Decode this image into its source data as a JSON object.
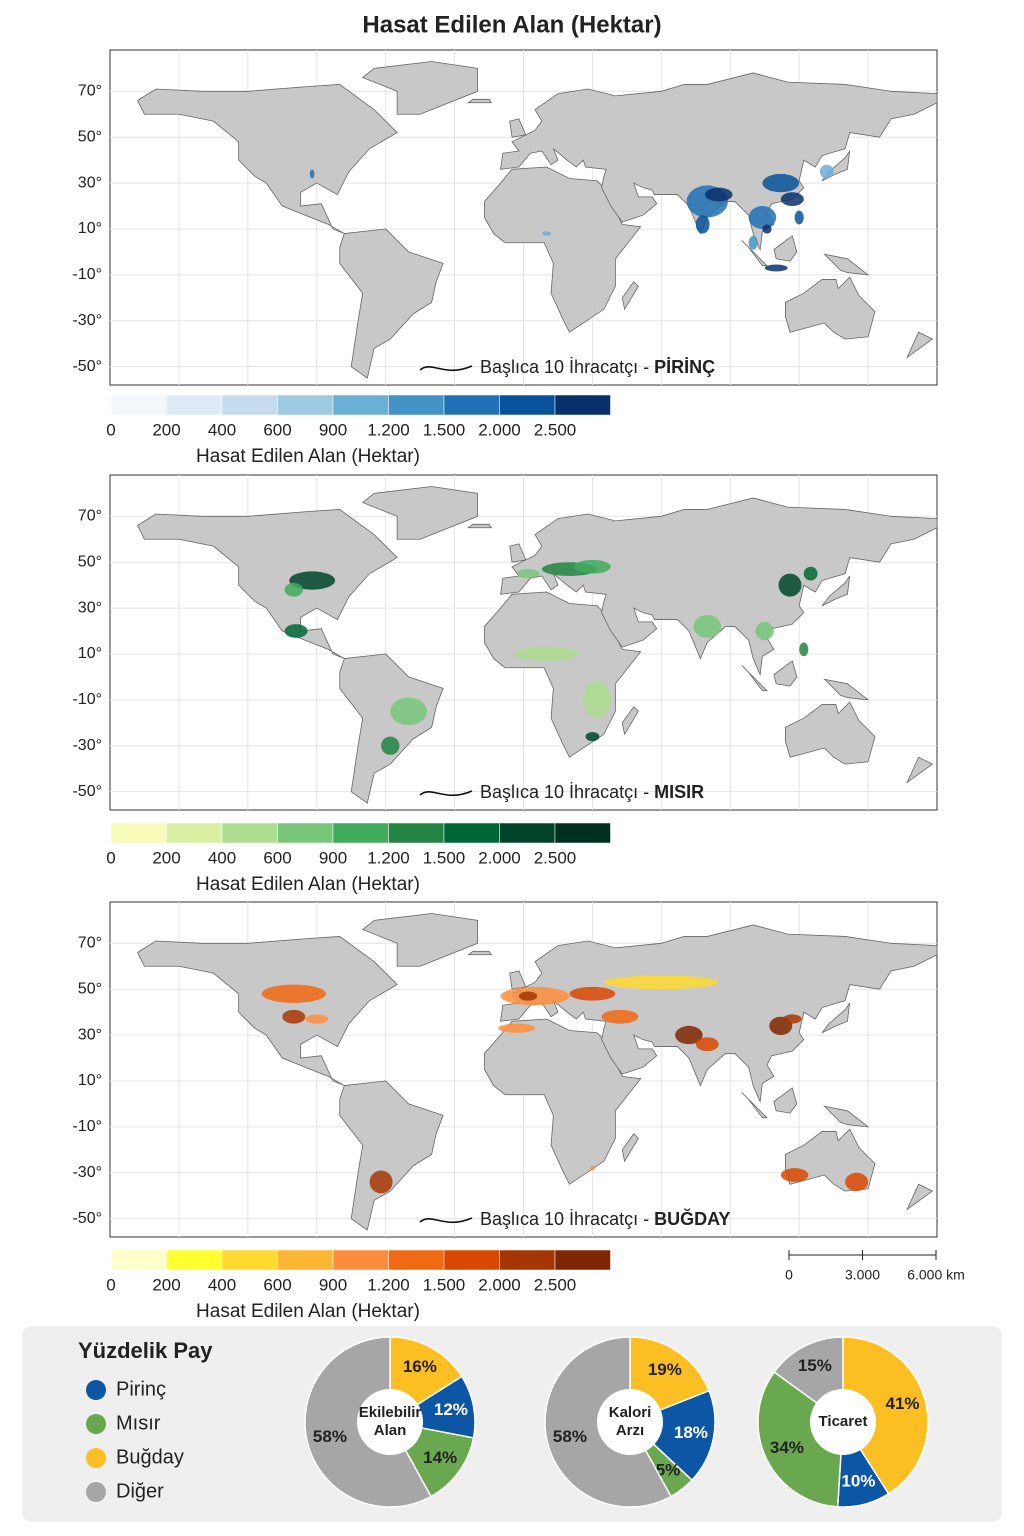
{
  "title": "Hasat Edilen Alan (Hektar)",
  "maps": {
    "xlim": [
      -180,
      180
    ],
    "ylim": [
      -58,
      88
    ],
    "yticks": [
      {
        "value": 70,
        "label": "70°"
      },
      {
        "value": 50,
        "label": "50°"
      },
      {
        "value": 30,
        "label": "30°"
      },
      {
        "value": 10,
        "label": "10°"
      },
      {
        "value": -10,
        "label": "-10°"
      },
      {
        "value": -30,
        "label": "-30°"
      },
      {
        "value": -50,
        "label": "-50°"
      }
    ],
    "panels": [
      {
        "legend_text": "Başlıca 10 İhracatçı -",
        "crop": "PİRİNÇ",
        "colorbar_title": "Hasat Edilen Alan (Hektar)",
        "colorbar_ticks": [
          0,
          200,
          400,
          600,
          900,
          {
            "value": 1200,
            "label": "1.200"
          },
          {
            "value": 1500,
            "label": "1.500"
          },
          {
            "value": 2000,
            "label": "2.000"
          },
          {
            "value": 2500,
            "label": "2.500"
          }
        ],
        "colors": [
          "#f2f7fc",
          "#deebf7",
          "#c6dbef",
          "#9ecae1",
          "#6baed6",
          "#4292c6",
          "#2171b5",
          "#08519c",
          "#08306b"
        ]
      },
      {
        "legend_text": "Başlıca 10 İhracatçı -",
        "crop": "MISIR",
        "colorbar_title": "Hasat Edilen Alan (Hektar)",
        "colorbar_ticks": [
          0,
          200,
          400,
          600,
          900,
          {
            "value": 1200,
            "label": "1.200"
          },
          {
            "value": 1500,
            "label": "1.500"
          },
          {
            "value": 2000,
            "label": "2.000"
          },
          {
            "value": 2500,
            "label": "2.500"
          }
        ],
        "colors": [
          "#f7fcb9",
          "#d9f0a3",
          "#addd8e",
          "#78c679",
          "#41ab5d",
          "#238443",
          "#006837",
          "#004529",
          "#00301f"
        ]
      },
      {
        "legend_text": "Başlıca 10 İhracatçı -",
        "crop": "BUĞDAY",
        "colorbar_title": "Hasat Edilen Alan (Hektar)",
        "colorbar_ticks": [
          0,
          200,
          400,
          600,
          900,
          {
            "value": 1200,
            "label": "1.200"
          },
          {
            "value": 1500,
            "label": "1.500"
          },
          {
            "value": 2000,
            "label": "2.000"
          },
          {
            "value": 2500,
            "label": "2.500"
          }
        ],
        "colors": [
          "#ffffcc",
          "#ffff33",
          "#fed930",
          "#fdb632",
          "#fd8d3c",
          "#f16913",
          "#d94801",
          "#a63603",
          "#7f2704"
        ]
      }
    ]
  },
  "scale_bar": {
    "ticks": [
      0,
      {
        "value": 3000,
        "label": "3.000"
      },
      {
        "value": 6000,
        "label": "6.000 km"
      }
    ]
  },
  "share": {
    "title": "Yüzdelik Pay",
    "categories": [
      "Pirinç",
      "Mısır",
      "Buğday",
      "Diğer"
    ],
    "colors": [
      "#0d56a6",
      "#6aa84f",
      "#fbbf24",
      "#a6a6a6"
    ],
    "charts": [
      {
        "center_label": "Ekilebilir\nAlan",
        "values": [
          12,
          14,
          16,
          58
        ],
        "value_labels": [
          "12%",
          "14%",
          "16%",
          "58%"
        ]
      },
      {
        "center_label": "Kalori\nArzı",
        "values": [
          18,
          5,
          19,
          58
        ],
        "value_labels": [
          "18%",
          "5%",
          "19%",
          "58%"
        ]
      },
      {
        "center_label": "Ticaret",
        "values": [
          10,
          34,
          41,
          15
        ],
        "value_labels": [
          "10%",
          "34%",
          "41%",
          "15%"
        ]
      }
    ]
  }
}
